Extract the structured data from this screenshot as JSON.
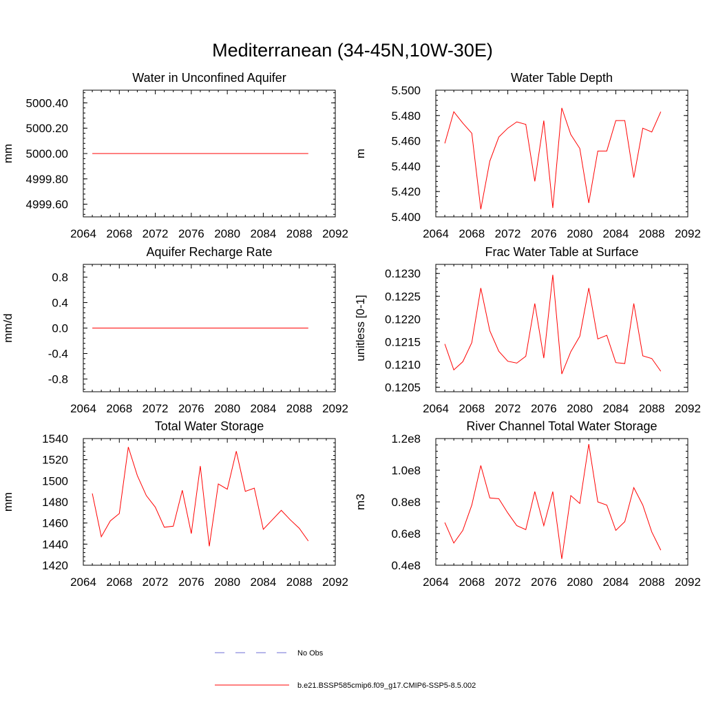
{
  "title": "Mediterranean (34-45N,10W-30E)",
  "legend": [
    {
      "label": "No Obs",
      "color": "#6e6ed6",
      "dashed": true
    },
    {
      "label": "b.e21.BSSP585cmip6.f09_g17.CMIP6-SSP5-8.5.002",
      "color": "#ff0000",
      "dashed": false
    }
  ],
  "chart_data": [
    {
      "type": "line",
      "title": "Water in Unconfined Aquifer",
      "ylabel": "mm",
      "xlim": [
        2064,
        2092
      ],
      "xticks": [
        "2064",
        "2068",
        "2072",
        "2076",
        "2080",
        "2084",
        "2088",
        "2092"
      ],
      "ylim": [
        4999.5,
        5000.5
      ],
      "yticks": [
        "4999.60",
        "4999.80",
        "5000.00",
        "5000.20",
        "5000.40"
      ],
      "series": [
        {
          "color": "#ff0000",
          "x": [
            2065,
            2089
          ],
          "y": [
            5000.0,
            5000.0
          ]
        }
      ]
    },
    {
      "type": "line",
      "title": "Water Table Depth",
      "ylabel": "m",
      "xlim": [
        2064,
        2092
      ],
      "xticks": [
        "2064",
        "2068",
        "2072",
        "2076",
        "2080",
        "2084",
        "2088",
        "2092"
      ],
      "ylim": [
        5.4,
        5.5
      ],
      "yticks": [
        "5.400",
        "5.420",
        "5.440",
        "5.460",
        "5.480",
        "5.500"
      ],
      "series": [
        {
          "color": "#ff0000",
          "x": [
            2065,
            2066,
            2067,
            2068,
            2069,
            2070,
            2071,
            2072,
            2073,
            2074,
            2075,
            2076,
            2077,
            2078,
            2079,
            2080,
            2081,
            2082,
            2083,
            2084,
            2085,
            2086,
            2087,
            2088,
            2089
          ],
          "y": [
            5.458,
            5.483,
            5.474,
            5.466,
            5.406,
            5.444,
            5.463,
            5.47,
            5.475,
            5.473,
            5.428,
            5.476,
            5.407,
            5.486,
            5.465,
            5.454,
            5.411,
            5.452,
            5.452,
            5.476,
            5.476,
            5.431,
            5.47,
            5.467,
            5.483
          ]
        }
      ]
    },
    {
      "type": "line",
      "title": "Aquifer Recharge Rate",
      "ylabel": "mm/d",
      "xlim": [
        2064,
        2092
      ],
      "xticks": [
        "2064",
        "2068",
        "2072",
        "2076",
        "2080",
        "2084",
        "2088",
        "2092"
      ],
      "ylim": [
        -1.0,
        1.0
      ],
      "yticks": [
        "-0.8",
        "-0.4",
        "0.0",
        "0.4",
        "0.8"
      ],
      "series": [
        {
          "color": "#ff0000",
          "x": [
            2065,
            2089
          ],
          "y": [
            0.0,
            0.0
          ]
        }
      ]
    },
    {
      "type": "line",
      "title": "Frac Water Table at Surface",
      "ylabel": "unitless [0-1]",
      "xlim": [
        2064,
        2092
      ],
      "xticks": [
        "2064",
        "2068",
        "2072",
        "2076",
        "2080",
        "2084",
        "2088",
        "2092"
      ],
      "ylim": [
        0.1204,
        0.1232
      ],
      "yticks": [
        "0.1205",
        "0.1210",
        "0.1215",
        "0.1220",
        "0.1225",
        "0.1230"
      ],
      "series": [
        {
          "color": "#ff0000",
          "x": [
            2065,
            2066,
            2067,
            2068,
            2069,
            2070,
            2071,
            2072,
            2073,
            2074,
            2075,
            2076,
            2077,
            2078,
            2079,
            2080,
            2081,
            2082,
            2083,
            2084,
            2085,
            2086,
            2087,
            2088,
            2089
          ],
          "y": [
            0.12145,
            0.12088,
            0.12106,
            0.12148,
            0.12268,
            0.12174,
            0.12129,
            0.12107,
            0.12103,
            0.12118,
            0.12234,
            0.12114,
            0.12297,
            0.12079,
            0.12128,
            0.12162,
            0.12268,
            0.12156,
            0.12164,
            0.12104,
            0.12102,
            0.12234,
            0.12119,
            0.12113,
            0.12085
          ]
        }
      ]
    },
    {
      "type": "line",
      "title": "Total Water Storage",
      "ylabel": "mm",
      "xlim": [
        2064,
        2092
      ],
      "xticks": [
        "2064",
        "2068",
        "2072",
        "2076",
        "2080",
        "2084",
        "2088",
        "2092"
      ],
      "ylim": [
        1420,
        1540
      ],
      "yticks": [
        "1420",
        "1440",
        "1460",
        "1480",
        "1500",
        "1520",
        "1540"
      ],
      "series": [
        {
          "color": "#ff0000",
          "x": [
            2065,
            2066,
            2067,
            2068,
            2069,
            2070,
            2071,
            2072,
            2073,
            2074,
            2075,
            2076,
            2077,
            2078,
            2079,
            2080,
            2081,
            2082,
            2083,
            2084,
            2085,
            2086,
            2087,
            2088,
            2089
          ],
          "y": [
            1488,
            1447,
            1462,
            1469,
            1532,
            1505,
            1486,
            1475,
            1456,
            1457,
            1491,
            1450,
            1514,
            1438,
            1497,
            1492,
            1528,
            1490,
            1493,
            1454,
            1463,
            1472,
            1463,
            1455,
            1443
          ]
        }
      ]
    },
    {
      "type": "line",
      "title": "River Channel Total Water Storage",
      "ylabel": "m3",
      "xlim": [
        2064,
        2092
      ],
      "xticks": [
        "2064",
        "2068",
        "2072",
        "2076",
        "2080",
        "2084",
        "2088",
        "2092"
      ],
      "ylim": [
        40000000,
        120000000
      ],
      "yticks": [
        "0.4e8",
        "0.6e8",
        "0.8e8",
        "1.0e8",
        "1.2e8"
      ],
      "series": [
        {
          "color": "#ff0000",
          "x": [
            2065,
            2066,
            2067,
            2068,
            2069,
            2070,
            2071,
            2072,
            2073,
            2074,
            2075,
            2076,
            2077,
            2078,
            2079,
            2080,
            2081,
            2082,
            2083,
            2084,
            2085,
            2086,
            2087,
            2088,
            2089
          ],
          "y": [
            67000000,
            54000000,
            62000000,
            78000000,
            103000000,
            82500000,
            82000000,
            73000000,
            65000000,
            62500000,
            86500000,
            65000000,
            86500000,
            44000000,
            84000000,
            79000000,
            116500000,
            80000000,
            78000000,
            62000000,
            67500000,
            89000000,
            78000000,
            61000000,
            49500000
          ]
        }
      ]
    }
  ]
}
